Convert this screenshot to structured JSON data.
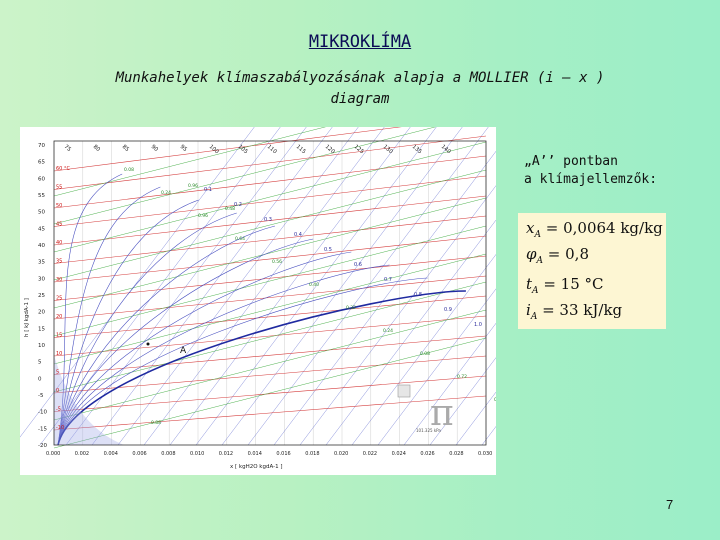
{
  "slide": {
    "title": "MIKROKLÍMA",
    "subtitle_line1": "Munkahelyek klímaszabályozásának alapja a MOLLIER (i – x )",
    "subtitle_line2": "diagram",
    "page_number": "7"
  },
  "point_note": {
    "line1": "„A’’ pontban",
    "line2": "a klímajellemzők:"
  },
  "formulas": [
    {
      "lhs": "x",
      "sub": "A",
      "rhs": "= 0,0064  kg/kg"
    },
    {
      "lhs": "φ",
      "sub": "A",
      "rhs": "= 0,8"
    },
    {
      "lhs": "t",
      "sub": "A",
      "rhs": "= 15 °C"
    },
    {
      "lhs": "i",
      "sub": "A",
      "rhs": "= 33  kJ/kg"
    }
  ],
  "diagram": {
    "y_ticks": [
      "70",
      "65",
      "60",
      "55",
      "50",
      "45",
      "40",
      "35",
      "30",
      "25",
      "20",
      "15",
      "10",
      "5",
      "0",
      "-5",
      "-10",
      "-15",
      "-20"
    ],
    "x_ticks": [
      "0.000",
      "0.002",
      "0.004",
      "0.006",
      "0.008",
      "0.010",
      "0.012",
      "0.014",
      "0.016",
      "0.018",
      "0.020",
      "0.022",
      "0.024",
      "0.026",
      "0.028",
      "0.030"
    ],
    "top_labels": [
      "75",
      "80",
      "85",
      "90",
      "95",
      "100",
      "105",
      "110",
      "115",
      "120",
      "125",
      "130",
      "135",
      "140"
    ],
    "y_axis_label": "h [ kJ kgdA-1 ]",
    "x_axis_label": "x [ kgH2O kgdA-1 ]",
    "point_label": "A",
    "pressure_label": "101.325 kPa",
    "temp_labels": [
      "60 °C",
      "55",
      "50",
      "45",
      "40",
      "35",
      "30",
      "25",
      "20",
      "15",
      "10",
      "5",
      "0",
      "-5",
      "-10"
    ],
    "rh_labels": [
      "0.1",
      "0.2",
      "0.3",
      "0.4",
      "0.5",
      "0.6",
      "0.7",
      "0.8",
      "0.9",
      "1.0"
    ],
    "small_labels": [
      "0.08",
      "0.24",
      "0.96",
      "0.64",
      "0.56",
      "0.40",
      "0.32",
      "0.24",
      "0.08",
      "0.72",
      "0.80",
      "0.88",
      "0.96",
      "0.48"
    ]
  }
}
